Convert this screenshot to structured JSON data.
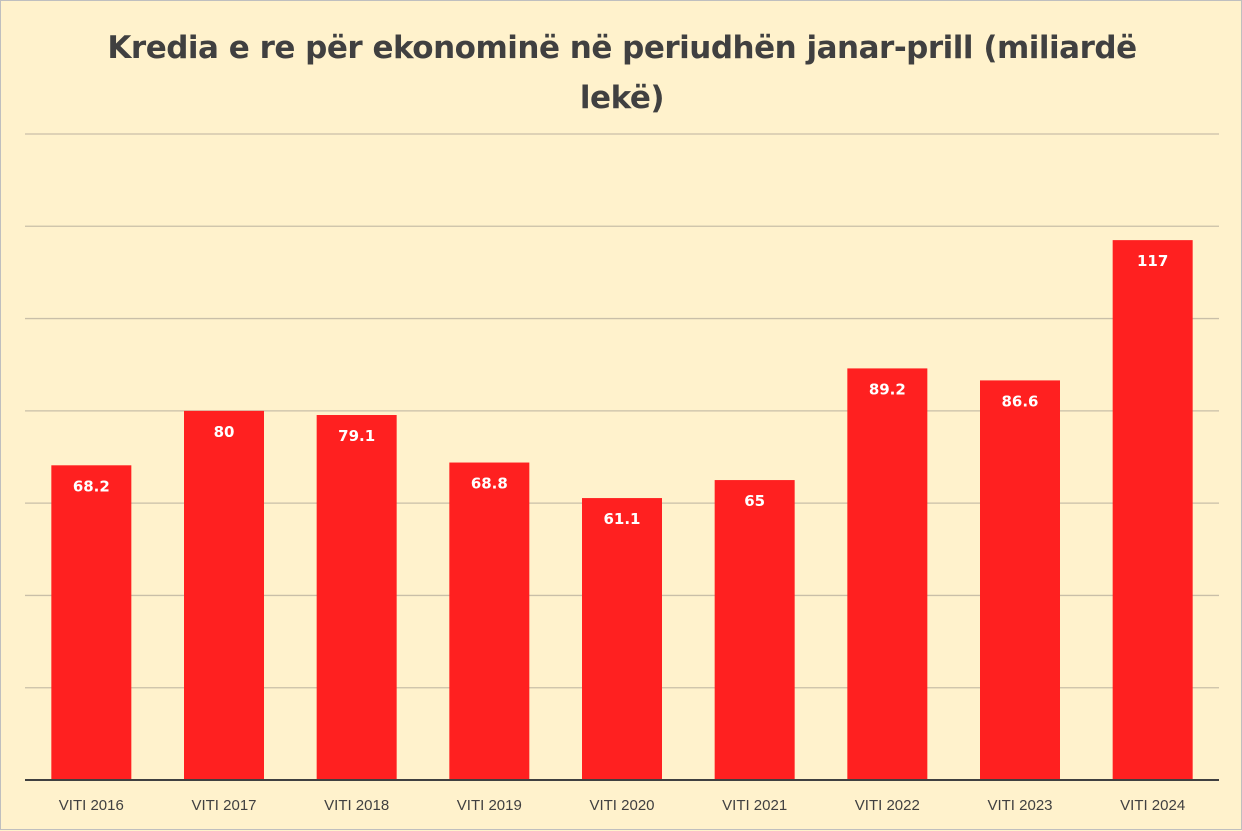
{
  "chart_data": {
    "type": "bar",
    "title": "Kredia e re për ekonominë në periudhën janar-prill (miliardë lekë)",
    "xlabel": "",
    "ylabel": "",
    "ylim": [
      0,
      140
    ],
    "grid": true,
    "gridlines": [
      20,
      40,
      60,
      80,
      100,
      120,
      140
    ],
    "categories": [
      "VITI 2016",
      "VITI 2017",
      "VITI 2018",
      "VITI 2019",
      "VITI 2020",
      "VITI 2021",
      "VITI 2022",
      "VITI 2023",
      "VITI 2024"
    ],
    "values": [
      68.2,
      80,
      79.1,
      68.8,
      61.1,
      65,
      89.2,
      86.6,
      117
    ],
    "value_labels": [
      "68.2",
      "80",
      "79.1",
      "68.8",
      "61.1",
      "65",
      "89.2",
      "86.6",
      "117"
    ],
    "colors": {
      "bar": "#ff2020",
      "background": "#fff2cc",
      "grid": "#c9bfa8",
      "axis": "#404040"
    }
  }
}
